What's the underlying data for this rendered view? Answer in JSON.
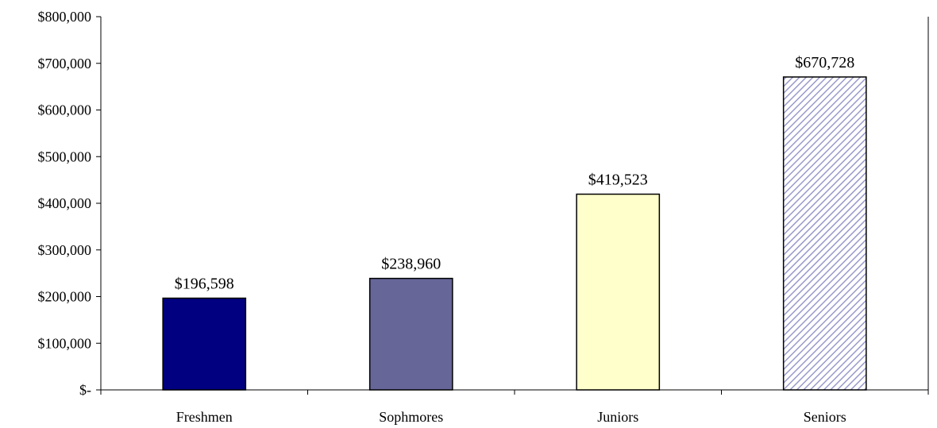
{
  "chart_data": {
    "type": "bar",
    "title": "",
    "xlabel": "",
    "ylabel": "",
    "categories": [
      "Freshmen",
      "Sophmores",
      "Juniors",
      "Seniors"
    ],
    "values": [
      196598,
      238960,
      419523,
      670728
    ],
    "data_labels": [
      "$196,598",
      "$238,960",
      "$419,523",
      "$670,728"
    ],
    "ylim": [
      0,
      800000
    ],
    "yticks": [
      0,
      100000,
      200000,
      300000,
      400000,
      500000,
      600000,
      700000,
      800000
    ],
    "ytick_labels": [
      "$-",
      "$100,000",
      "$200,000",
      "$300,000",
      "$400,000",
      "$500,000",
      "$600,000",
      "$700,000",
      "$800,000"
    ],
    "grid": false,
    "legend": "none",
    "bar_fills": [
      "#000080",
      "#666699",
      "#FFFFCC",
      "hatch-lavender"
    ],
    "hatch_colors": {
      "background": "#FFFFFF",
      "stripe": "#9999CC"
    }
  }
}
